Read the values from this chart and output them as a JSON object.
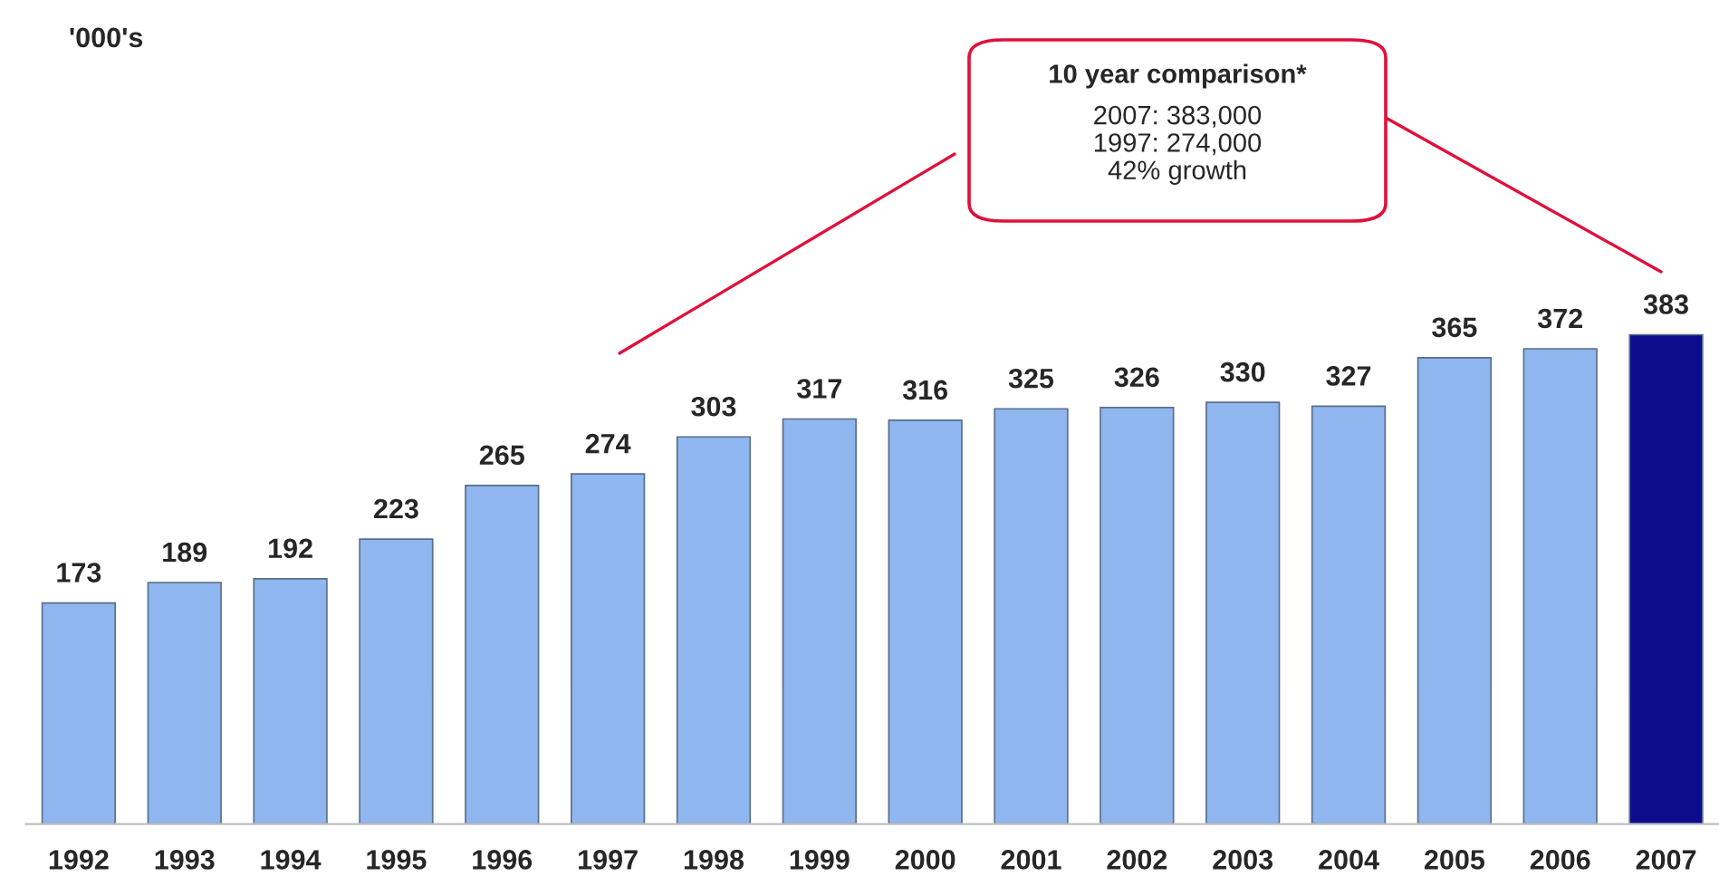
{
  "chart_data": {
    "type": "bar",
    "categories": [
      "1992",
      "1993",
      "1994",
      "1995",
      "1996",
      "1997",
      "1998",
      "1999",
      "2000",
      "2001",
      "2002",
      "2003",
      "2004",
      "2005",
      "2006",
      "2007"
    ],
    "values": [
      173,
      189,
      192,
      223,
      265,
      274,
      303,
      317,
      316,
      325,
      326,
      330,
      327,
      365,
      372,
      383
    ],
    "colors": [
      "#8fb6ee",
      "#8fb6ee",
      "#8fb6ee",
      "#8fb6ee",
      "#8fb6ee",
      "#8fb6ee",
      "#8fb6ee",
      "#8fb6ee",
      "#8fb6ee",
      "#8fb6ee",
      "#8fb6ee",
      "#8fb6ee",
      "#8fb6ee",
      "#8fb6ee",
      "#8fb6ee",
      "#0c0c8c"
    ],
    "data_labels": true,
    "annotations": [
      "'000's",
      "10 year comparison*\n2007: 383,000\n1997: 274,000\n42% growth"
    ]
  }
}
